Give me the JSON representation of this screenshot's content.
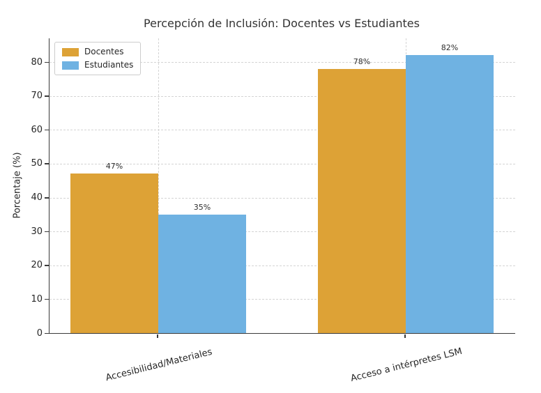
{
  "chart_data": {
    "type": "bar",
    "title": "Percepción de Inclusión: Docentes vs Estudiantes",
    "ylabel": "Porcentaje (%)",
    "xlabel": "",
    "categories": [
      "Accesibilidad/Materiales",
      "Acceso a intérpretes LSM"
    ],
    "series": [
      {
        "name": "Docentes",
        "color": "#DDA236",
        "values": [
          47,
          78
        ],
        "labels": [
          "47%",
          "78%"
        ]
      },
      {
        "name": "Estudiantes",
        "color": "#6FB2E2",
        "values": [
          35,
          82
        ],
        "labels": [
          "35%",
          "82%"
        ]
      }
    ],
    "yticks": [
      0,
      10,
      20,
      30,
      40,
      50,
      60,
      70,
      80
    ],
    "ylim": [
      0,
      87
    ],
    "grid": "dashed horizontal at yticks, dashed vertical at category centers",
    "legend_position": "upper-left",
    "background_color": "#ffffff",
    "text_color": "#262626",
    "spine_color": "#3a3a3a",
    "grid_color": "#d4d4d4"
  }
}
